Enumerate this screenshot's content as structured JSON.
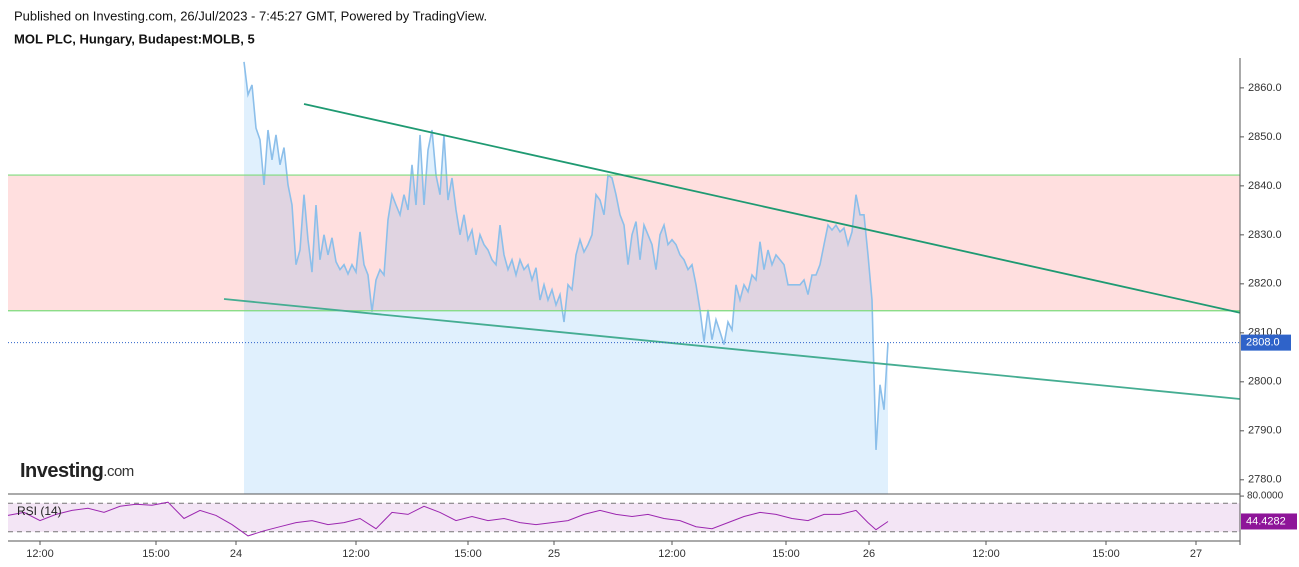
{
  "header": {
    "published": "Published on Investing.com, 26/Jul/2023 - 7:45:27 GMT, Powered by TradingView.",
    "logo": "Investing",
    "logo_suffix": ".com"
  },
  "chart_data": [
    {
      "type": "area",
      "title": "MOL PLC, Hungary, Budapest:MOLB, 5",
      "x": [
        59,
        60,
        61,
        62,
        63,
        64,
        65,
        66,
        67,
        68,
        69,
        70,
        71,
        72,
        73,
        74,
        75,
        76,
        77,
        78,
        79,
        80,
        81,
        82,
        83,
        84,
        85,
        86,
        87,
        88,
        89,
        90,
        91,
        92,
        93,
        94,
        95,
        96,
        97,
        98,
        99,
        100,
        101,
        102,
        103,
        104,
        105,
        106,
        107,
        108,
        109,
        110,
        111,
        112,
        113,
        114,
        115,
        116,
        117,
        118,
        119,
        120,
        121,
        122,
        123,
        124,
        125,
        126,
        127,
        128,
        129,
        130,
        131,
        132,
        133,
        134,
        135,
        136,
        137,
        138,
        139,
        140,
        141,
        142,
        143,
        144,
        145,
        146,
        147,
        148,
        149,
        150,
        151,
        152,
        153,
        154,
        155,
        156,
        157,
        158,
        159,
        160,
        161,
        162,
        163,
        164,
        165,
        166,
        167,
        168,
        169,
        170,
        171,
        172,
        173,
        174,
        175,
        176,
        177,
        178,
        179,
        180,
        181,
        182,
        183,
        184,
        185,
        186,
        187,
        188,
        189,
        190,
        191,
        192,
        193,
        194,
        195,
        196,
        197,
        198,
        199,
        200,
        201,
        202,
        203,
        204,
        205,
        206,
        207,
        208,
        209,
        210,
        211,
        212,
        213,
        214,
        215,
        216,
        217,
        218,
        219,
        220
      ],
      "series": [
        {
          "color": "#8cbfea",
          "area_color": "rgba(33,150,243,0.14)",
          "values": [
            2865.3,
            2858.6,
            2860.6,
            2851.8,
            2849.4,
            2840.2,
            2851.4,
            2845.3,
            2850.4,
            2844.3,
            2847.8,
            2840.2,
            2836.1,
            2823.9,
            2826.9,
            2838.2,
            2829.0,
            2822.4,
            2836.1,
            2824.9,
            2830.0,
            2825.9,
            2829.4,
            2824.5,
            2822.9,
            2823.9,
            2822.0,
            2823.9,
            2822.4,
            2830.6,
            2823.9,
            2821.8,
            2814.3,
            2820.8,
            2822.9,
            2821.8,
            2833.1,
            2838.2,
            2836.1,
            2834.1,
            2838.2,
            2835.1,
            2844.3,
            2836.1,
            2850.4,
            2836.1,
            2847.3,
            2851.4,
            2842.2,
            2838.2,
            2850.4,
            2837.1,
            2841.6,
            2835.1,
            2830.0,
            2834.1,
            2829.0,
            2831.0,
            2825.9,
            2830.0,
            2828.0,
            2826.9,
            2824.9,
            2823.9,
            2832.0,
            2825.9,
            2822.9,
            2824.9,
            2821.8,
            2824.9,
            2822.9,
            2823.9,
            2820.8,
            2823.3,
            2816.7,
            2819.8,
            2816.7,
            2818.8,
            2815.7,
            2817.8,
            2812.2,
            2819.8,
            2818.8,
            2825.9,
            2829.0,
            2826.5,
            2828.0,
            2830.0,
            2838.2,
            2837.1,
            2834.1,
            2842.2,
            2841.6,
            2838.2,
            2834.1,
            2832.0,
            2823.9,
            2830.0,
            2832.7,
            2824.9,
            2832.0,
            2830.0,
            2828.0,
            2822.9,
            2830.0,
            2832.0,
            2828.0,
            2829.0,
            2828.0,
            2825.9,
            2824.9,
            2822.9,
            2823.9,
            2819.8,
            2814.7,
            2808.2,
            2814.7,
            2808.6,
            2812.7,
            2810.2,
            2807.6,
            2812.2,
            2810.6,
            2819.8,
            2816.7,
            2819.8,
            2818.4,
            2821.8,
            2820.8,
            2828.6,
            2822.9,
            2826.9,
            2823.9,
            2825.9,
            2824.9,
            2823.9,
            2819.8,
            2819.8,
            2819.8,
            2819.8,
            2820.8,
            2817.8,
            2821.8,
            2821.8,
            2823.9,
            2828.0,
            2832.0,
            2831.0,
            2832.0,
            2830.6,
            2831.4,
            2828.0,
            2830.6,
            2838.2,
            2834.1,
            2834.1,
            2825.9,
            2816.7,
            2786.1,
            2799.4,
            2794.3,
            2808.0
          ]
        }
      ],
      "xlim": [
        0,
        308
      ],
      "xticks": [
        {
          "value": 8,
          "label": "12:00"
        },
        {
          "value": 37,
          "label": "15:00"
        },
        {
          "value": 57,
          "label": "24"
        },
        {
          "value": 87,
          "label": "12:00"
        },
        {
          "value": 115,
          "label": "15:00"
        },
        {
          "value": 136.5,
          "label": "25"
        },
        {
          "value": 166,
          "label": "12:00"
        },
        {
          "value": 194.5,
          "label": "15:00"
        },
        {
          "value": 215.25,
          "label": "26"
        },
        {
          "value": 244.5,
          "label": "12:00"
        },
        {
          "value": 274.5,
          "label": "15:00"
        },
        {
          "value": 297,
          "label": "27"
        }
      ],
      "ylim": [
        2777.1,
        2866.1
      ],
      "yticks": [
        {
          "value": 2780,
          "label": "2780.0"
        },
        {
          "value": 2790,
          "label": "2790.0"
        },
        {
          "value": 2800,
          "label": "2800.0"
        },
        {
          "value": 2810,
          "label": "2810.0"
        },
        {
          "value": 2820,
          "label": "2820.0"
        },
        {
          "value": 2830,
          "label": "2830.0"
        },
        {
          "value": 2840,
          "label": "2840.0"
        },
        {
          "value": 2850,
          "label": "2850.0"
        },
        {
          "value": 2860,
          "label": "2860.0"
        }
      ],
      "zone": {
        "top": 2842.2,
        "bottom": 2814.5,
        "fill": "#ffdfdf",
        "border": "#7ddc7d"
      },
      "trend_lines": [
        {
          "x": [
            74,
            308
          ],
          "values": [
            2856.7,
            2814.1
          ],
          "color": "#1f9a72"
        },
        {
          "x": [
            54,
            308
          ],
          "values": [
            2816.9,
            2796.5
          ],
          "color": "#45ad92"
        }
      ],
      "last_value": {
        "value": 2808,
        "label": "2808.0",
        "color": "#2f63c9"
      }
    },
    {
      "type": "line",
      "title": "RSI (14)",
      "x": [
        0,
        4,
        8,
        12,
        16,
        20,
        24,
        28,
        32,
        36,
        40,
        44,
        48,
        52,
        56,
        60,
        64,
        68,
        72,
        76,
        80,
        84,
        88,
        92,
        96,
        100,
        104,
        108,
        112,
        116,
        120,
        124,
        128,
        132,
        136,
        140,
        144,
        148,
        152,
        156,
        160,
        164,
        168,
        172,
        176,
        180,
        184,
        188,
        192,
        196,
        200,
        204,
        208,
        212,
        215,
        217,
        220
      ],
      "series": [
        {
          "color": "#9c27b0",
          "values": [
            52.9,
            57.1,
            45.7,
            54.3,
            60,
            62.9,
            57.1,
            65.7,
            68.6,
            67.1,
            71.4,
            48.6,
            60,
            52.9,
            40,
            24.3,
            31.4,
            37.1,
            42.9,
            45.7,
            40,
            42.9,
            48.6,
            34.3,
            57.1,
            54.3,
            65.7,
            57.1,
            45.7,
            51.4,
            45.7,
            48.6,
            42.9,
            40,
            42.9,
            45.7,
            54.3,
            60,
            54.3,
            51.4,
            54.3,
            48.6,
            45.7,
            37.1,
            34.3,
            42.9,
            51.4,
            57.1,
            54.3,
            48.6,
            45.7,
            54.3,
            54.3,
            60,
            42.9,
            32.9,
            44.4282
          ]
        }
      ],
      "band": {
        "top": 70,
        "bottom": 30,
        "fill": "#f3e5f5"
      },
      "xlim": [
        0,
        308
      ],
      "ylim": [
        17.1,
        82.9
      ],
      "yticks": [
        {
          "value": 80,
          "label": "80.0000"
        }
      ],
      "last_value": {
        "value": 44.4282,
        "label": "44.4282",
        "color": "#8e1599"
      }
    }
  ]
}
